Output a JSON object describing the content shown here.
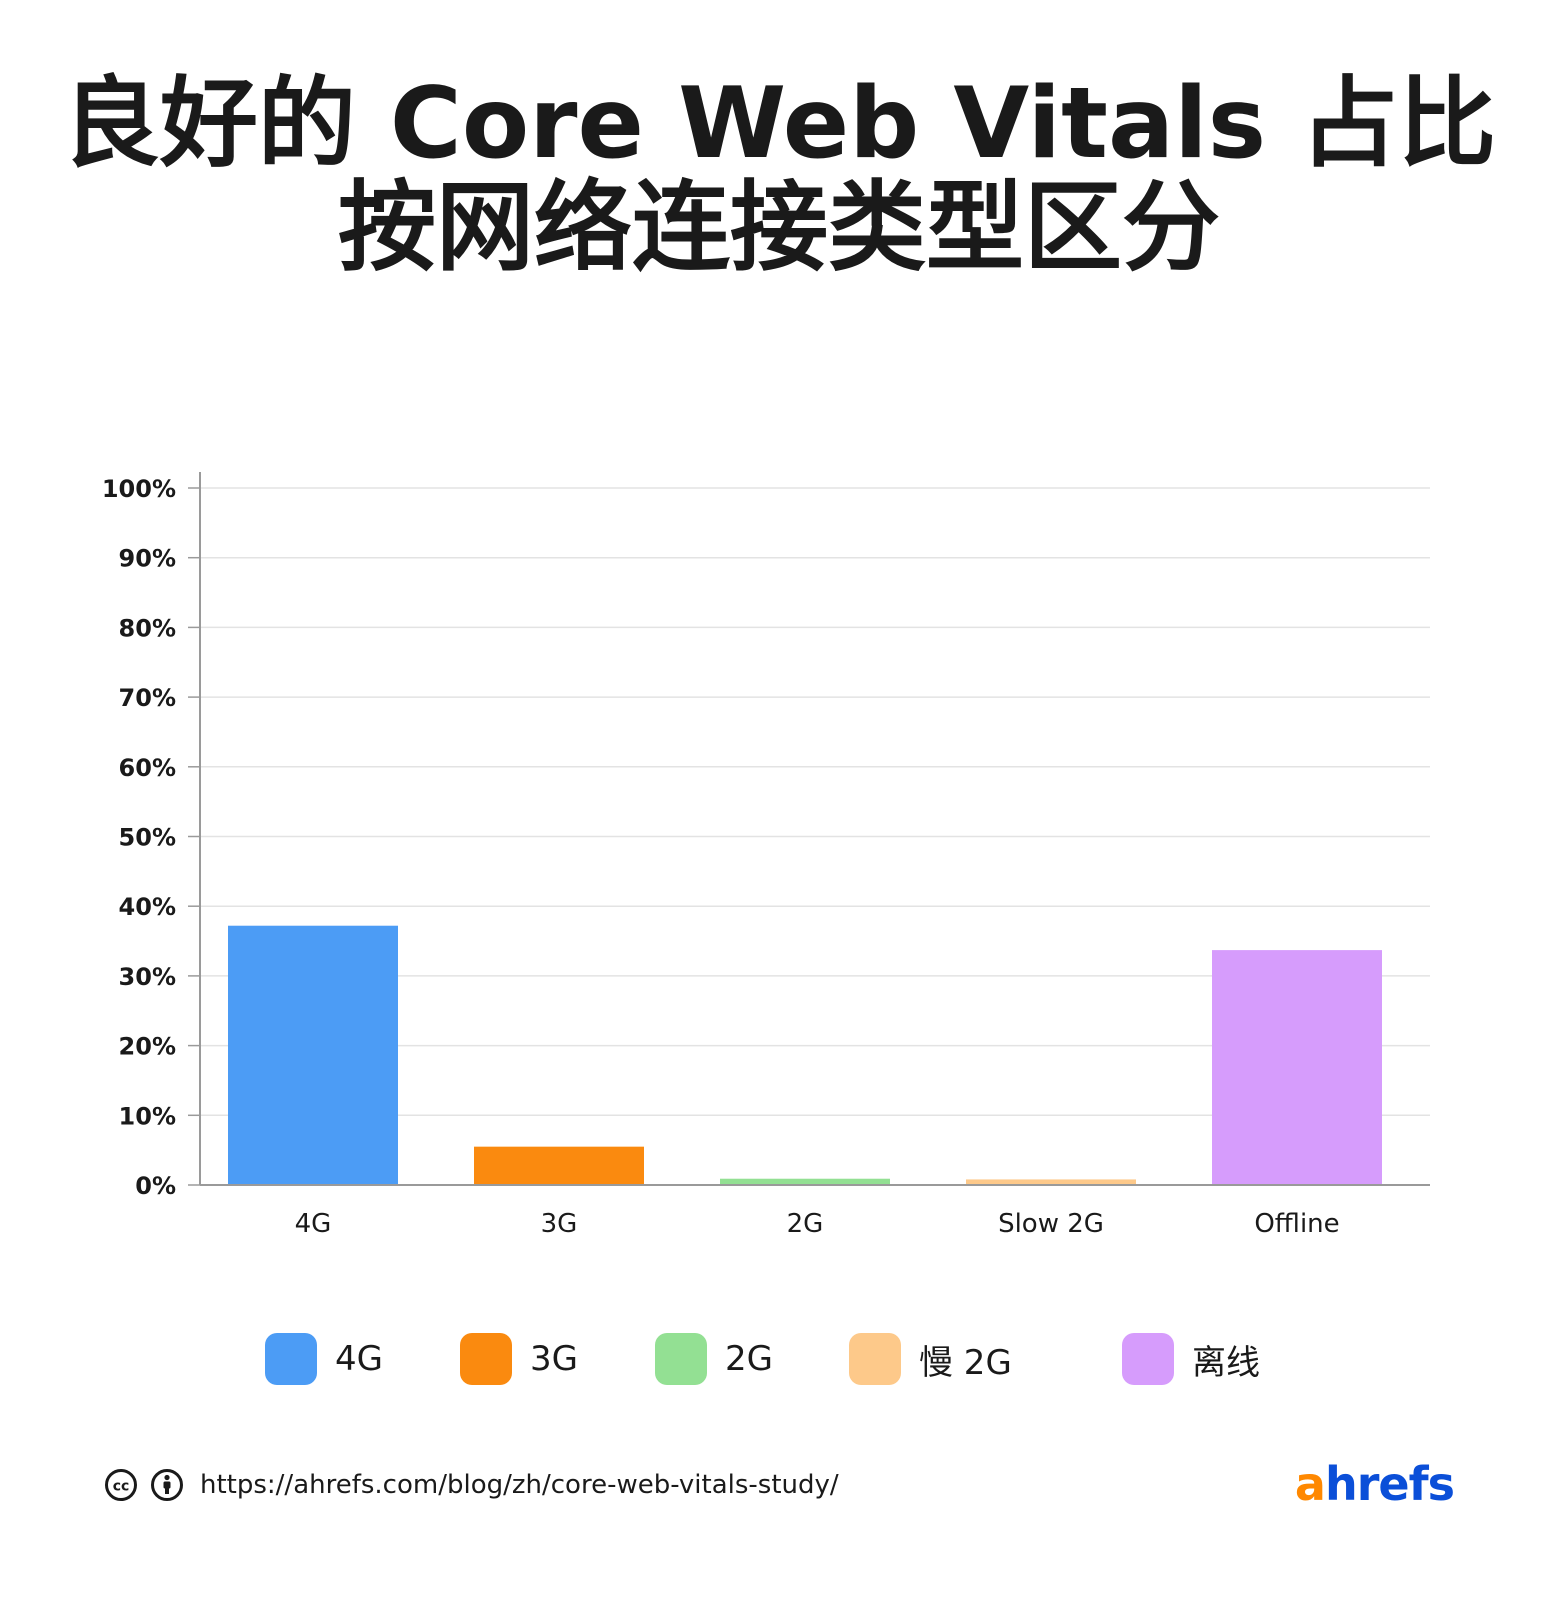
{
  "title_line1": "良好的 Core Web Vitals 占比",
  "title_line2": "按网络连接类型区分",
  "chart_data": {
    "type": "bar",
    "categories": [
      "4G",
      "3G",
      "2G",
      "Slow 2G",
      "Offline"
    ],
    "values": [
      37.2,
      5.5,
      0.9,
      0.8,
      33.7
    ],
    "colors": [
      "#4c9cf5",
      "#fa8a0f",
      "#93e093",
      "#fdc98a",
      "#d69cfc"
    ],
    "ylim": [
      0,
      100
    ],
    "yticks": [
      0,
      10,
      20,
      30,
      40,
      50,
      60,
      70,
      80,
      90,
      100
    ],
    "ytick_labels": [
      "0%",
      "10%",
      "20%",
      "30%",
      "40%",
      "50%",
      "60%",
      "70%",
      "80%",
      "90%",
      "100%"
    ],
    "grid": true,
    "legend_position": "bottom",
    "legend": [
      "4G",
      "3G",
      "2G",
      "慢 2G",
      "离线"
    ]
  },
  "footer": {
    "cc_icon": "creative-commons-icon",
    "by_icon": "attribution-icon",
    "url": "https://ahrefs.com/blog/zh/core-web-vitals-study/"
  },
  "brand": {
    "first": "a",
    "rest": "hrefs",
    "color_first": "#ff8800",
    "color_rest": "#0b4fd8"
  }
}
